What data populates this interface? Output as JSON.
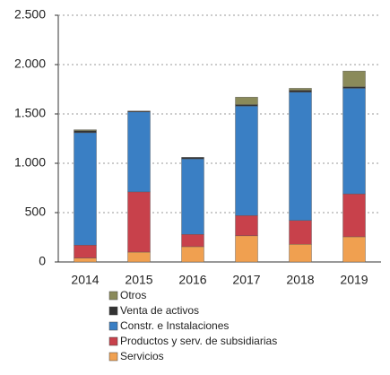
{
  "chart_data": {
    "type": "stacked_bar",
    "categories": [
      "2014",
      "2015",
      "2016",
      "2017",
      "2018",
      "2019"
    ],
    "series": [
      {
        "name": "Servicios",
        "color": "#f0a050",
        "values": [
          40,
          100,
          155,
          265,
          180,
          255
        ]
      },
      {
        "name": "Productos y serv. de subsidiarias",
        "color": "#c8414b",
        "values": [
          130,
          610,
          125,
          205,
          240,
          435
        ]
      },
      {
        "name": "Constr. e Instalaciones",
        "color": "#3a7fc4",
        "values": [
          1140,
          810,
          765,
          1110,
          1300,
          1070
        ]
      },
      {
        "name": "Venta de activos",
        "color": "#333333",
        "values": [
          20,
          10,
          15,
          15,
          20,
          15
        ]
      },
      {
        "name": "Otros",
        "color": "#8a8a5a",
        "values": [
          10,
          0,
          0,
          75,
          20,
          160
        ]
      }
    ],
    "ylim": [
      0,
      2500
    ],
    "yticks": [
      0,
      500,
      {
        "value": 1000,
        "label": "1.000"
      },
      {
        "value": 1500,
        "label": "1.500"
      },
      {
        "value": 2000,
        "label": "2.000"
      },
      {
        "value": 2500,
        "label": "2.500"
      }
    ],
    "grid": true
  }
}
